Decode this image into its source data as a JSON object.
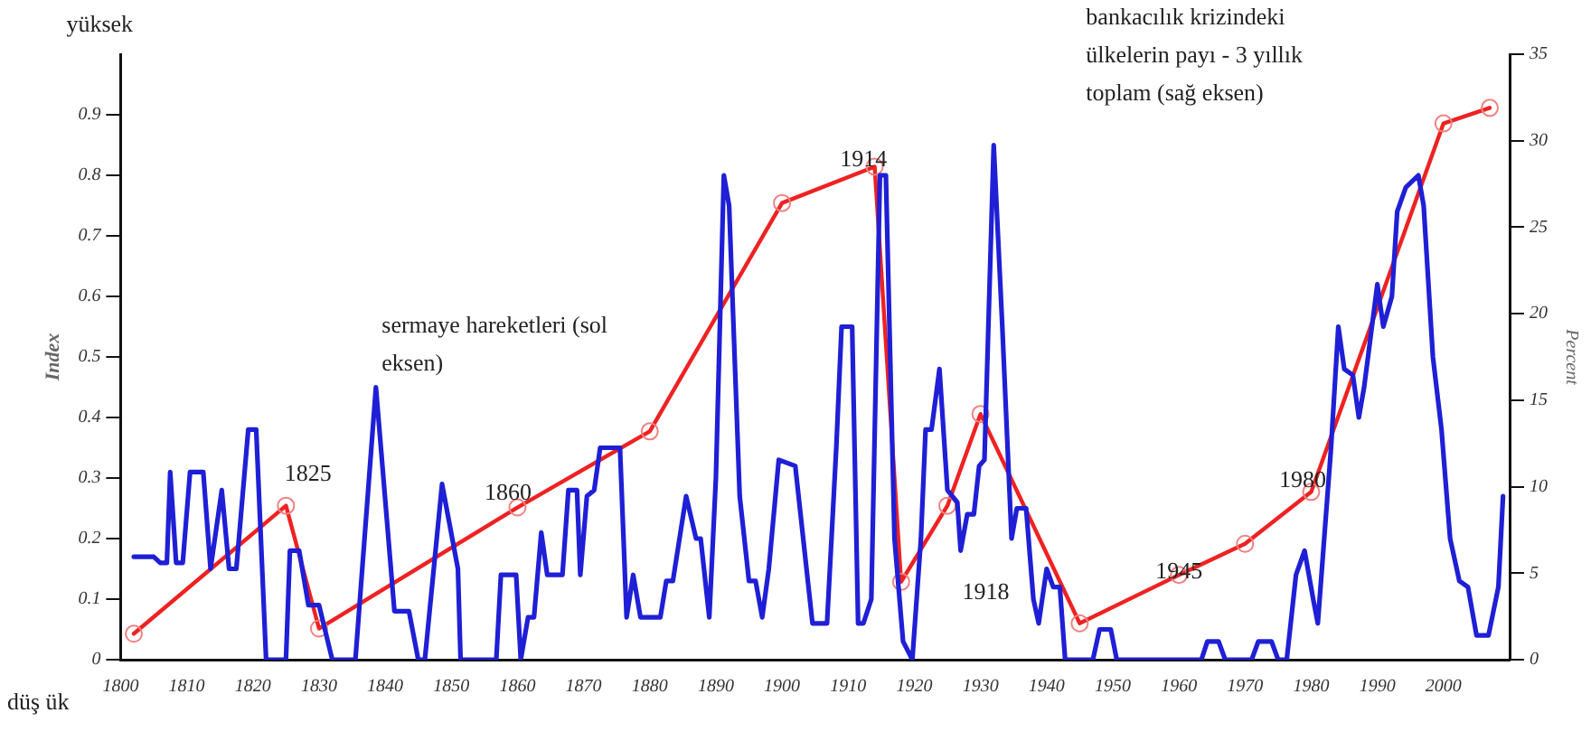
{
  "chart_data": {
    "type": "line",
    "ylabel": "Index",
    "y2label": "Percent",
    "xlim": [
      1800,
      2010
    ],
    "xticks": [
      1800,
      1810,
      1820,
      1830,
      1840,
      1850,
      1860,
      1870,
      1880,
      1890,
      1900,
      1910,
      1920,
      1930,
      1940,
      1950,
      1960,
      1970,
      1980,
      1990,
      2000
    ],
    "ylim": [
      0,
      1
    ],
    "yticks": [
      0,
      0.1,
      0.2,
      0.3,
      0.4,
      0.5,
      0.6,
      0.7,
      0.8,
      0.9
    ],
    "y2lim": [
      0,
      35
    ],
    "y2ticks": [
      0,
      5,
      10,
      15,
      20,
      25,
      30,
      35
    ],
    "grid": false,
    "legend": false,
    "line_style": "solid",
    "series": [
      {
        "color": "#1f1fd6",
        "marker": "none",
        "x": [
          1802,
          1805,
          1806,
          1807,
          1807.5,
          1808.4,
          1809.4,
          1810.5,
          1812.5,
          1813.6,
          1815.3,
          1816.4,
          1817.5,
          1819.3,
          1820.5,
          1822,
          1825,
          1825.6,
          1827,
          1828.4,
          1830,
          1832,
          1835.5,
          1838.6,
          1841.4,
          1843.6,
          1845,
          1846,
          1848.6,
          1851,
          1851.4,
          1856.8,
          1857.5,
          1859.8,
          1860.5,
          1861.6,
          1862.5,
          1863.6,
          1864.5,
          1866.8,
          1867.7,
          1869,
          1869.5,
          1870.5,
          1871.6,
          1872.5,
          1875.5,
          1876.5,
          1877.5,
          1878.6,
          1881.6,
          1882.5,
          1883.5,
          1885.5,
          1887,
          1887.7,
          1889,
          1890,
          1891.2,
          1892,
          1893.6,
          1895,
          1896,
          1897,
          1898,
          1899.5,
          1902,
          1904.6,
          1906.8,
          1908.2,
          1909,
          1910.6,
          1911.5,
          1912.3,
          1913.5,
          1914.8,
          1915.7,
          1917,
          1918.3,
          1919.7,
          1921,
          1921.7,
          1922.6,
          1923.8,
          1925,
          1926.5,
          1927,
          1928,
          1929,
          1929.8,
          1930.6,
          1932,
          1933.3,
          1934.7,
          1935.5,
          1936.9,
          1938,
          1938.8,
          1940,
          1941,
          1942,
          1942.8,
          1947,
          1948,
          1949.7,
          1950.6,
          1963.4,
          1964.3,
          1966,
          1967,
          1971,
          1972,
          1974,
          1975,
          1976.3,
          1977.7,
          1979,
          1980.3,
          1981,
          1983,
          1984.1,
          1985,
          1986.3,
          1987.2,
          1988,
          1990,
          1990.9,
          1992.2,
          1993,
          1994.3,
          1996.2,
          1997,
          1998.4,
          1999.7,
          2001,
          2002.4,
          2003.7,
          2005,
          2006.8,
          2008.3,
          2009
        ],
        "values": [
          0.17,
          0.17,
          0.16,
          0.16,
          0.31,
          0.16,
          0.16,
          0.31,
          0.31,
          0.15,
          0.28,
          0.15,
          0.15,
          0.38,
          0.38,
          0,
          0,
          0.18,
          0.18,
          0.09,
          0.09,
          0,
          0,
          0.45,
          0.08,
          0.08,
          0,
          0,
          0.29,
          0.15,
          0,
          0,
          0.14,
          0.14,
          0,
          0.07,
          0.07,
          0.21,
          0.14,
          0.14,
          0.28,
          0.28,
          0.14,
          0.27,
          0.28,
          0.35,
          0.35,
          0.07,
          0.14,
          0.07,
          0.07,
          0.13,
          0.13,
          0.27,
          0.2,
          0.2,
          0.07,
          0.3,
          0.8,
          0.75,
          0.27,
          0.13,
          0.13,
          0.07,
          0.15,
          0.33,
          0.32,
          0.06,
          0.06,
          0.35,
          0.55,
          0.55,
          0.06,
          0.06,
          0.1,
          0.8,
          0.8,
          0.2,
          0.03,
          0,
          0.2,
          0.38,
          0.38,
          0.48,
          0.28,
          0.26,
          0.18,
          0.24,
          0.24,
          0.32,
          0.33,
          0.85,
          0.55,
          0.2,
          0.25,
          0.25,
          0.1,
          0.06,
          0.15,
          0.12,
          0.12,
          0,
          0,
          0.05,
          0.05,
          0,
          0,
          0.03,
          0.03,
          0,
          0,
          0.03,
          0.03,
          0,
          0,
          0.14,
          0.18,
          0.1,
          0.06,
          0.35,
          0.55,
          0.48,
          0.47,
          0.4,
          0.45,
          0.62,
          0.55,
          0.6,
          0.74,
          0.78,
          0.8,
          0.75,
          0.5,
          0.38,
          0.2,
          0.13,
          0.12,
          0.04,
          0.04,
          0.12,
          0.27
        ]
      },
      {
        "axis": "y2",
        "color": "#ee2222",
        "marker": "circle",
        "x": [
          1802,
          1825,
          1830,
          1860,
          1880,
          1900,
          1914,
          1918,
          1925,
          1930,
          1945,
          1960,
          1970,
          1980,
          2000,
          2007
        ],
        "values": [
          1.5,
          8.9,
          1.8,
          8.8,
          13.2,
          26.4,
          28.5,
          4.5,
          8.9,
          14.2,
          2.1,
          4.9,
          6.7,
          9.7,
          31,
          31.9
        ]
      }
    ],
    "annotations": [
      "yüksek",
      "düş ük",
      "sermaye hareketleri (sol eksen)",
      "bankacılık krizindeki ülkelerin payı - 3 yıllık toplam (sağ eksen)",
      "1825",
      "1860",
      "1914",
      "1918",
      "1945",
      "1980"
    ]
  }
}
